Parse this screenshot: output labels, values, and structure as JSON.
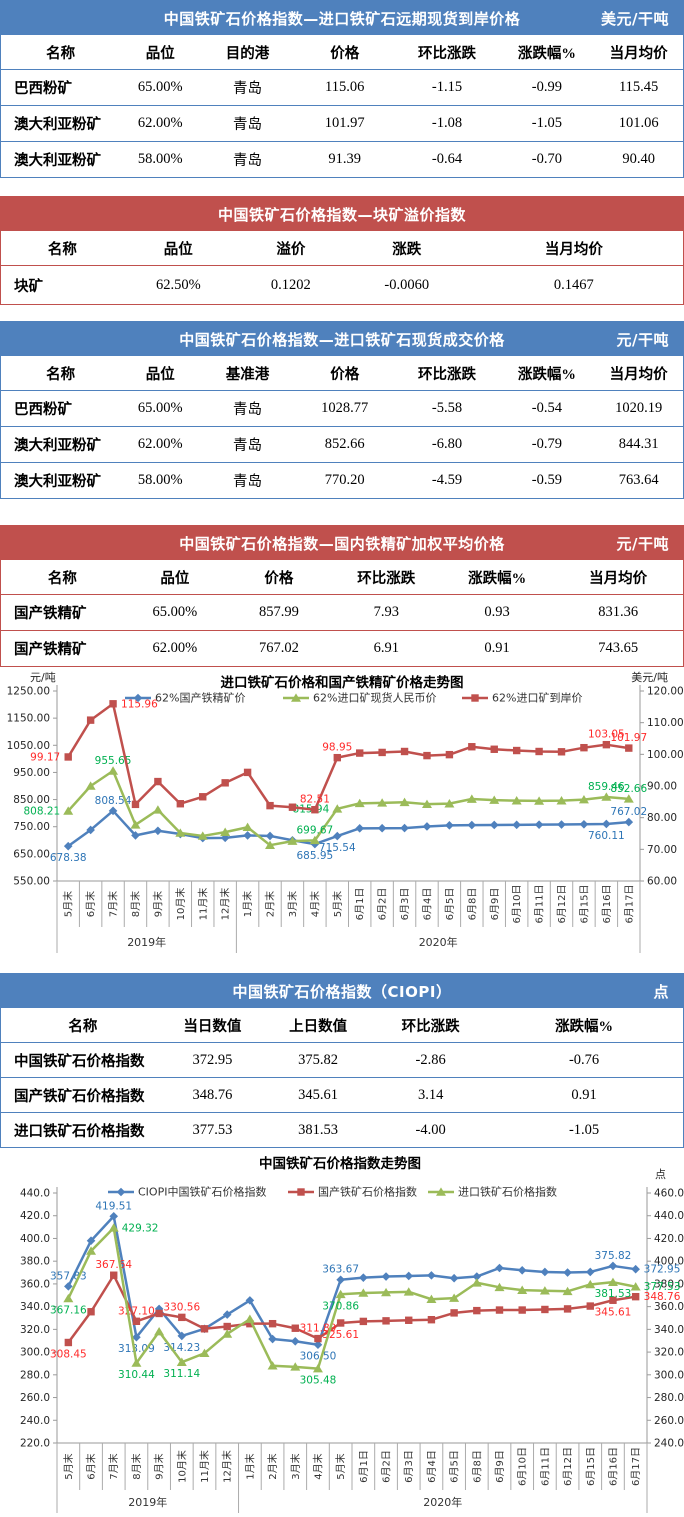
{
  "colors": {
    "header_blue": "#4F81BD",
    "header_red": "#C0504D",
    "series_blue": "#4F81BD",
    "series_green": "#9BBB59",
    "series_red": "#C0504D",
    "label_blue": "#2E75B6",
    "label_green": "#00B050",
    "label_red": "#FF2A2A"
  },
  "tables": [
    {
      "theme": "blue",
      "title": "中国铁矿石价格指数—进口铁矿石远期现货到岸价格",
      "unit": "美元/干吨",
      "columns": [
        "名称",
        "品位",
        "目的港",
        "价格",
        "环比涨跌",
        "涨跌幅%",
        "当月均价"
      ],
      "rows": [
        [
          "巴西粉矿",
          "65.00%",
          "青岛",
          "115.06",
          "-1.15",
          "-0.99",
          "115.45"
        ],
        [
          "澳大利亚粉矿",
          "62.00%",
          "青岛",
          "101.97",
          "-1.08",
          "-1.05",
          "101.06"
        ],
        [
          "澳大利亚粉矿",
          "58.00%",
          "青岛",
          "91.39",
          "-0.64",
          "-0.70",
          "90.40"
        ]
      ]
    },
    {
      "theme": "red",
      "title": "中国铁矿石价格指数—块矿溢价指数",
      "unit": "",
      "columns": [
        "名称",
        "品位",
        "溢价",
        "涨跌",
        "当月均价"
      ],
      "rows": [
        [
          "块矿",
          "62.50%",
          "0.1202",
          "-0.0060",
          "0.1467"
        ]
      ]
    },
    {
      "theme": "blue",
      "title": "中国铁矿石价格指数—进口铁矿石现货成交价格",
      "unit": "元/干吨",
      "columns": [
        "名称",
        "品位",
        "基准港",
        "价格",
        "环比涨跌",
        "涨跌幅%",
        "当月均价"
      ],
      "rows": [
        [
          "巴西粉矿",
          "65.00%",
          "青岛",
          "1028.77",
          "-5.58",
          "-0.54",
          "1020.19"
        ],
        [
          "澳大利亚粉矿",
          "62.00%",
          "青岛",
          "852.66",
          "-6.80",
          "-0.79",
          "844.31"
        ],
        [
          "澳大利亚粉矿",
          "58.00%",
          "青岛",
          "770.20",
          "-4.59",
          "-0.59",
          "763.64"
        ]
      ]
    },
    {
      "theme": "red",
      "title": "中国铁矿石价格指数—国内铁精矿加权平均价格",
      "unit": "元/干吨",
      "columns": [
        "名称",
        "品位",
        "价格",
        "环比涨跌",
        "涨跌幅%",
        "当月均价"
      ],
      "rows": [
        [
          "国产铁精矿",
          "65.00%",
          "857.99",
          "7.93",
          "0.93",
          "831.36"
        ],
        [
          "国产铁精矿",
          "62.00%",
          "767.02",
          "6.91",
          "0.91",
          "743.65"
        ]
      ]
    },
    {
      "theme": "blue",
      "title": "中国铁矿石价格指数（CIOPI）",
      "unit": "点",
      "columns": [
        "名称",
        "当日数值",
        "上日数值",
        "环比涨跌",
        "涨跌幅%"
      ],
      "rows": [
        [
          "中国铁矿石价格指数",
          "372.95",
          "375.82",
          "-2.86",
          "-0.76"
        ],
        [
          "国产铁矿石价格指数",
          "348.76",
          "345.61",
          "3.14",
          "0.91"
        ],
        [
          "进口铁矿石价格指数",
          "377.53",
          "381.53",
          "-4.00",
          "-1.05"
        ]
      ]
    }
  ],
  "chart_data": [
    {
      "type": "line",
      "title": "进口铁矿石价格和国产铁精矿价格走势图",
      "legend_position": "top",
      "grid": false,
      "left_axis": {
        "unit": "元/吨",
        "min": 550,
        "max": 1250,
        "step": 100,
        "decimals": 2
      },
      "right_axis": {
        "unit": "美元/吨",
        "min": 60,
        "max": 120,
        "step": 10,
        "decimals": 2
      },
      "categories": [
        "5月末",
        "6月末",
        "7月末",
        "8月末",
        "9月末",
        "10月末",
        "11月末",
        "12月末",
        "1月末",
        "2月末",
        "3月末",
        "4月末",
        "5月末",
        "6月1日",
        "6月2日",
        "6月3日",
        "6月4日",
        "6月5日",
        "6月8日",
        "6月9日",
        "6月10日",
        "6月11日",
        "6月12日",
        "6月15日",
        "6月16日",
        "6月17日"
      ],
      "year_groups": [
        {
          "label": "2019年",
          "count": 8
        },
        {
          "label": "2020年",
          "count": 18
        }
      ],
      "series": [
        {
          "name": "62%国产铁精矿价",
          "color": "#4F81BD",
          "label_color": "#2E75B6",
          "marker": "diamond",
          "axis": "left",
          "values": [
            678.38,
            738,
            808.54,
            718,
            735,
            723,
            708,
            709,
            718,
            716,
            700,
            685.95,
            715.54,
            744,
            744.5,
            745,
            751,
            755,
            756,
            756.5,
            757,
            757.5,
            758,
            759,
            760.11,
            767.02
          ],
          "point_labels": [
            {
              "i": 0,
              "text": "678.38",
              "pos": "below"
            },
            {
              "i": 2,
              "text": "808.54",
              "pos": "above"
            },
            {
              "i": 11,
              "text": "685.95",
              "pos": "below"
            },
            {
              "i": 12,
              "text": "715.54",
              "pos": "below"
            },
            {
              "i": 24,
              "text": "760.11",
              "pos": "below"
            },
            {
              "i": 25,
              "text": "767.02",
              "pos": "above"
            }
          ]
        },
        {
          "name": "62%进口矿现货人民币价",
          "color": "#9BBB59",
          "label_color": "#00B050",
          "marker": "triangle",
          "axis": "left",
          "values": [
            808.21,
            900,
            955.65,
            757,
            812,
            727,
            716,
            730,
            748,
            682,
            697,
            699.67,
            815.94,
            836,
            838,
            840,
            833,
            835,
            852,
            848,
            846,
            845,
            846,
            850,
            859.46,
            852.66
          ],
          "point_labels": [
            {
              "i": 0,
              "text": "808.21",
              "pos": "left"
            },
            {
              "i": 2,
              "text": "955.65",
              "pos": "above"
            },
            {
              "i": 11,
              "text": "699.67",
              "pos": "above"
            },
            {
              "i": 12,
              "text": "815.94",
              "pos": "left"
            },
            {
              "i": 24,
              "text": "859.46",
              "pos": "above"
            },
            {
              "i": 25,
              "text": "852.66",
              "pos": "above"
            }
          ]
        },
        {
          "name": "62%进口矿到岸价",
          "color": "#C0504D",
          "label_color": "#FF2A2A",
          "marker": "square",
          "axis": "right",
          "values": [
            99.17,
            110.8,
            115.96,
            84.2,
            91.4,
            84.4,
            86.6,
            91.0,
            94.3,
            83.8,
            83.3,
            82.51,
            98.95,
            100.4,
            100.6,
            100.9,
            99.6,
            99.9,
            102.4,
            101.6,
            101.2,
            100.9,
            100.8,
            102.1,
            103.05,
            101.97
          ],
          "point_labels": [
            {
              "i": 0,
              "text": "99.17",
              "pos": "left"
            },
            {
              "i": 2,
              "text": "115.96",
              "pos": "right"
            },
            {
              "i": 11,
              "text": "82.51",
              "pos": "above"
            },
            {
              "i": 12,
              "text": "98.95",
              "pos": "above"
            },
            {
              "i": 24,
              "text": "103.05",
              "pos": "above"
            },
            {
              "i": 25,
              "text": "101.97",
              "pos": "above"
            }
          ]
        }
      ]
    },
    {
      "type": "line",
      "title": "中国铁矿石价格指数走势图",
      "legend_position": "top",
      "grid": false,
      "left_axis": {
        "unit": "",
        "min": 220,
        "max": 440,
        "step": 20,
        "decimals": 1
      },
      "right_axis": {
        "unit": "点",
        "min": 240,
        "max": 460,
        "step": 20,
        "decimals": 1
      },
      "categories": [
        "5月末",
        "6月末",
        "7月末",
        "8月末",
        "9月末",
        "10月末",
        "11月末",
        "12月末",
        "1月末",
        "2月末",
        "3月末",
        "4月末",
        "5月末",
        "6月1日",
        "6月2日",
        "6月3日",
        "6月4日",
        "6月5日",
        "6月8日",
        "6月9日",
        "6月10日",
        "6月11日",
        "6月12日",
        "6月15日",
        "6月16日",
        "6月17日"
      ],
      "year_groups": [
        {
          "label": "2019年",
          "count": 8
        },
        {
          "label": "2020年",
          "count": 18
        }
      ],
      "series": [
        {
          "name": "CIOPI中国铁矿石价格指数",
          "color": "#4F81BD",
          "label_color": "#2E75B6",
          "marker": "diamond",
          "axis": "left",
          "values": [
            357.83,
            398,
            419.51,
            313.09,
            338,
            314.23,
            320.5,
            333,
            345.5,
            311.5,
            309.5,
            306.5,
            363.67,
            365.5,
            366.5,
            367,
            367.5,
            365,
            366.5,
            374,
            372,
            370.5,
            370,
            370.5,
            375.82,
            372.95
          ],
          "point_labels": [
            {
              "i": 0,
              "text": "357.83",
              "pos": "above"
            },
            {
              "i": 2,
              "text": "419.51",
              "pos": "above"
            },
            {
              "i": 3,
              "text": "313.09",
              "pos": "below"
            },
            {
              "i": 5,
              "text": "314.23",
              "pos": "below"
            },
            {
              "i": 11,
              "text": "306.50",
              "pos": "below"
            },
            {
              "i": 12,
              "text": "363.67",
              "pos": "above"
            },
            {
              "i": 24,
              "text": "375.82",
              "pos": "above"
            },
            {
              "i": 25,
              "text": "372.95",
              "pos": "right"
            }
          ]
        },
        {
          "name": "国产铁矿石价格指数",
          "color": "#C0504D",
          "label_color": "#FF2A2A",
          "marker": "square",
          "axis": "left",
          "values": [
            308.45,
            335.5,
            367.64,
            327.1,
            334,
            330.56,
            320.5,
            322.5,
            325,
            325,
            321,
            311.89,
            325.61,
            327,
            327.5,
            328,
            328.5,
            334.5,
            336.5,
            337,
            337,
            337.5,
            338,
            340.5,
            345.61,
            348.76
          ],
          "point_labels": [
            {
              "i": 0,
              "text": "308.45",
              "pos": "below"
            },
            {
              "i": 2,
              "text": "367.64",
              "pos": "above"
            },
            {
              "i": 3,
              "text": "327.10",
              "pos": "above"
            },
            {
              "i": 5,
              "text": "330.56",
              "pos": "above"
            },
            {
              "i": 11,
              "text": "311.89",
              "pos": "above"
            },
            {
              "i": 12,
              "text": "325.61",
              "pos": "below"
            },
            {
              "i": 24,
              "text": "345.61",
              "pos": "below"
            },
            {
              "i": 25,
              "text": "348.76",
              "pos": "right"
            }
          ]
        },
        {
          "name": "进口铁矿石价格指数",
          "color": "#9BBB59",
          "label_color": "#00B050",
          "marker": "triangle",
          "axis": "right",
          "values": [
            367.16,
            409,
            429.32,
            310.44,
            338,
            311.14,
            319,
            336,
            349,
            308,
            307,
            305.48,
            370.86,
            372,
            372.5,
            373,
            366.5,
            367.5,
            381,
            377,
            374.5,
            374,
            373.5,
            379.5,
            381.53,
            377.53
          ],
          "point_labels": [
            {
              "i": 0,
              "text": "367.16",
              "pos": "below"
            },
            {
              "i": 2,
              "text": "429.32",
              "pos": "right"
            },
            {
              "i": 3,
              "text": "310.44",
              "pos": "below"
            },
            {
              "i": 5,
              "text": "311.14",
              "pos": "below"
            },
            {
              "i": 11,
              "text": "305.48",
              "pos": "below"
            },
            {
              "i": 12,
              "text": "370.86",
              "pos": "below"
            },
            {
              "i": 24,
              "text": "381.53",
              "pos": "below"
            },
            {
              "i": 25,
              "text": "377.53",
              "pos": "right"
            }
          ]
        }
      ]
    }
  ]
}
